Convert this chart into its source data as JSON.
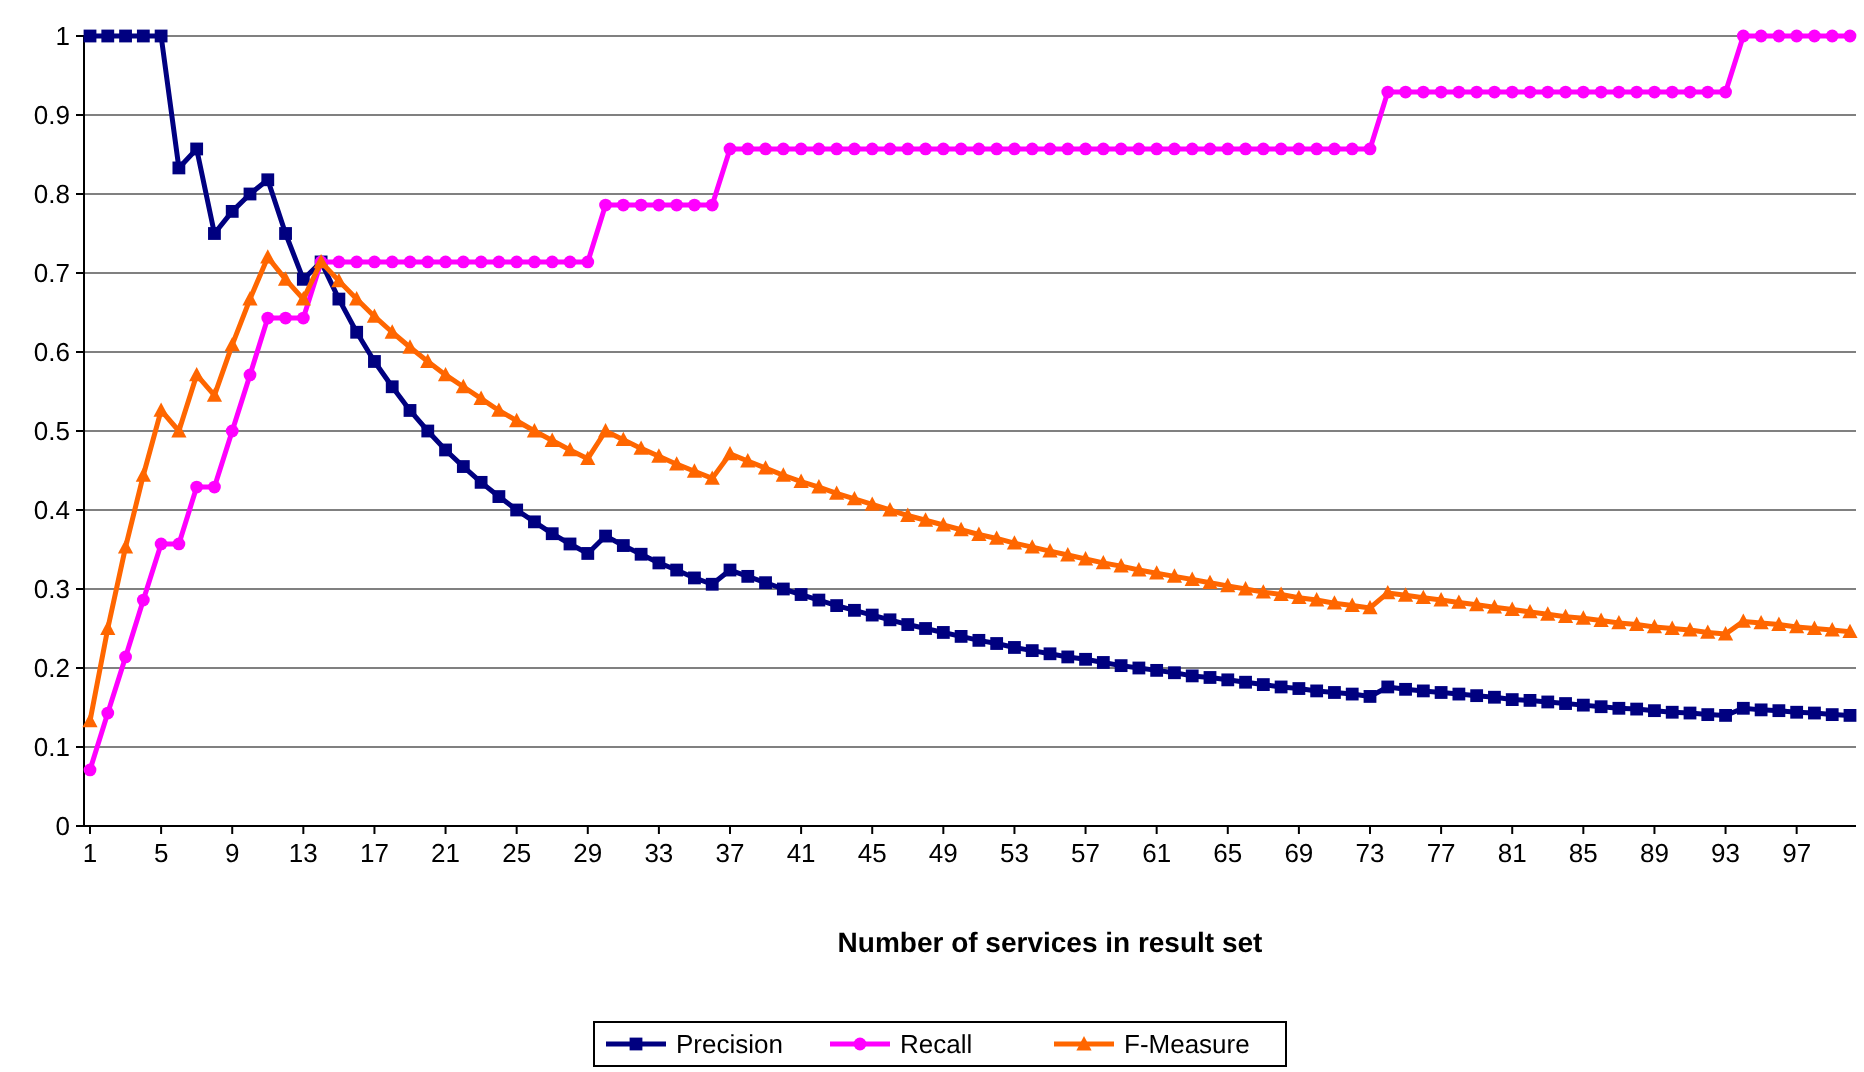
{
  "chart_data": {
    "type": "line",
    "xlabel": "Number of services in result set",
    "categories": [
      "1",
      null,
      null,
      null,
      "5",
      null,
      null,
      null,
      "9",
      null,
      null,
      null,
      "13",
      null,
      null,
      null,
      "17",
      null,
      null,
      null,
      "21",
      null,
      null,
      null,
      "25",
      null,
      null,
      null,
      "29",
      null,
      null,
      null,
      "33",
      null,
      null,
      null,
      "37",
      null,
      null,
      null,
      "41",
      null,
      null,
      null,
      "45",
      null,
      null,
      null,
      "49",
      null,
      null,
      null,
      "53",
      null,
      null,
      null,
      "57",
      null,
      null,
      null,
      "61",
      null,
      null,
      null,
      "65",
      null,
      null,
      null,
      "69",
      null,
      null,
      null,
      "73",
      null,
      null,
      null,
      "77",
      null,
      null,
      null,
      "81",
      null,
      null,
      null,
      "85",
      null,
      null,
      null,
      "89",
      null,
      null,
      null,
      "93",
      null,
      null,
      null,
      "97",
      null,
      null,
      null
    ],
    "ylim": [
      0,
      1
    ],
    "yticks": [
      0,
      0.1,
      0.2,
      0.3,
      0.4,
      0.5,
      0.6,
      0.7,
      0.8,
      0.9,
      1
    ],
    "grid": "y",
    "legend": "bottom",
    "series": [
      {
        "name": "Precision",
        "color": "#000080",
        "marker": "square",
        "values": [
          1,
          1,
          1,
          1,
          1,
          0.833,
          0.857,
          0.75,
          0.778,
          0.8,
          0.818,
          0.75,
          0.692,
          0.714,
          0.667,
          0.625,
          0.588,
          0.556,
          0.526,
          0.5,
          0.476,
          0.455,
          0.435,
          0.417,
          0.4,
          0.385,
          0.37,
          0.357,
          0.345,
          0.367,
          0.355,
          0.344,
          0.333,
          0.324,
          0.314,
          0.306,
          0.324,
          0.316,
          0.308,
          0.3,
          0.293,
          0.286,
          0.279,
          0.273,
          0.267,
          0.261,
          0.255,
          0.25,
          0.245,
          0.24,
          0.235,
          0.231,
          0.226,
          0.222,
          0.218,
          0.214,
          0.211,
          0.207,
          0.203,
          0.2,
          0.197,
          0.194,
          0.19,
          0.188,
          0.185,
          0.182,
          0.179,
          0.176,
          0.174,
          0.171,
          0.169,
          0.167,
          0.164,
          0.176,
          0.173,
          0.171,
          0.169,
          0.167,
          0.165,
          0.163,
          0.16,
          0.159,
          0.157,
          0.155,
          0.153,
          0.151,
          0.149,
          0.148,
          0.146,
          0.144,
          0.143,
          0.141,
          0.14,
          0.149,
          0.147,
          0.146,
          0.144,
          0.143,
          0.141,
          0.14
        ]
      },
      {
        "name": "Recall",
        "color": "#ff00ff",
        "marker": "circle",
        "values": [
          0.071,
          0.143,
          0.214,
          0.286,
          0.357,
          0.357,
          0.429,
          0.429,
          0.5,
          0.571,
          0.643,
          0.643,
          0.643,
          0.714,
          0.714,
          0.714,
          0.714,
          0.714,
          0.714,
          0.714,
          0.714,
          0.714,
          0.714,
          0.714,
          0.714,
          0.714,
          0.714,
          0.714,
          0.714,
          0.786,
          0.786,
          0.786,
          0.786,
          0.786,
          0.786,
          0.786,
          0.857,
          0.857,
          0.857,
          0.857,
          0.857,
          0.857,
          0.857,
          0.857,
          0.857,
          0.857,
          0.857,
          0.857,
          0.857,
          0.857,
          0.857,
          0.857,
          0.857,
          0.857,
          0.857,
          0.857,
          0.857,
          0.857,
          0.857,
          0.857,
          0.857,
          0.857,
          0.857,
          0.857,
          0.857,
          0.857,
          0.857,
          0.857,
          0.857,
          0.857,
          0.857,
          0.857,
          0.857,
          0.929,
          0.929,
          0.929,
          0.929,
          0.929,
          0.929,
          0.929,
          0.929,
          0.929,
          0.929,
          0.929,
          0.929,
          0.929,
          0.929,
          0.929,
          0.929,
          0.929,
          0.929,
          0.929,
          0.929,
          1,
          1,
          1,
          1,
          1,
          1,
          1
        ]
      },
      {
        "name": "F-Measure",
        "color": "#ff6600",
        "marker": "triangle",
        "values": [
          0.133,
          0.25,
          0.353,
          0.444,
          0.526,
          0.5,
          0.571,
          0.545,
          0.609,
          0.667,
          0.72,
          0.692,
          0.667,
          0.714,
          0.69,
          0.667,
          0.645,
          0.625,
          0.606,
          0.588,
          0.571,
          0.556,
          0.541,
          0.526,
          0.513,
          0.5,
          0.488,
          0.476,
          0.465,
          0.5,
          0.489,
          0.478,
          0.468,
          0.458,
          0.449,
          0.44,
          0.471,
          0.462,
          0.453,
          0.444,
          0.436,
          0.429,
          0.421,
          0.414,
          0.407,
          0.4,
          0.393,
          0.387,
          0.381,
          0.375,
          0.369,
          0.364,
          0.358,
          0.353,
          0.348,
          0.343,
          0.338,
          0.333,
          0.329,
          0.324,
          0.32,
          0.316,
          0.312,
          0.308,
          0.304,
          0.3,
          0.296,
          0.293,
          0.289,
          0.286,
          0.282,
          0.279,
          0.276,
          0.295,
          0.292,
          0.289,
          0.286,
          0.283,
          0.28,
          0.277,
          0.274,
          0.271,
          0.268,
          0.265,
          0.263,
          0.26,
          0.257,
          0.255,
          0.252,
          0.25,
          0.248,
          0.245,
          0.243,
          0.259,
          0.257,
          0.255,
          0.252,
          0.25,
          0.248,
          0.246
        ]
      }
    ]
  }
}
